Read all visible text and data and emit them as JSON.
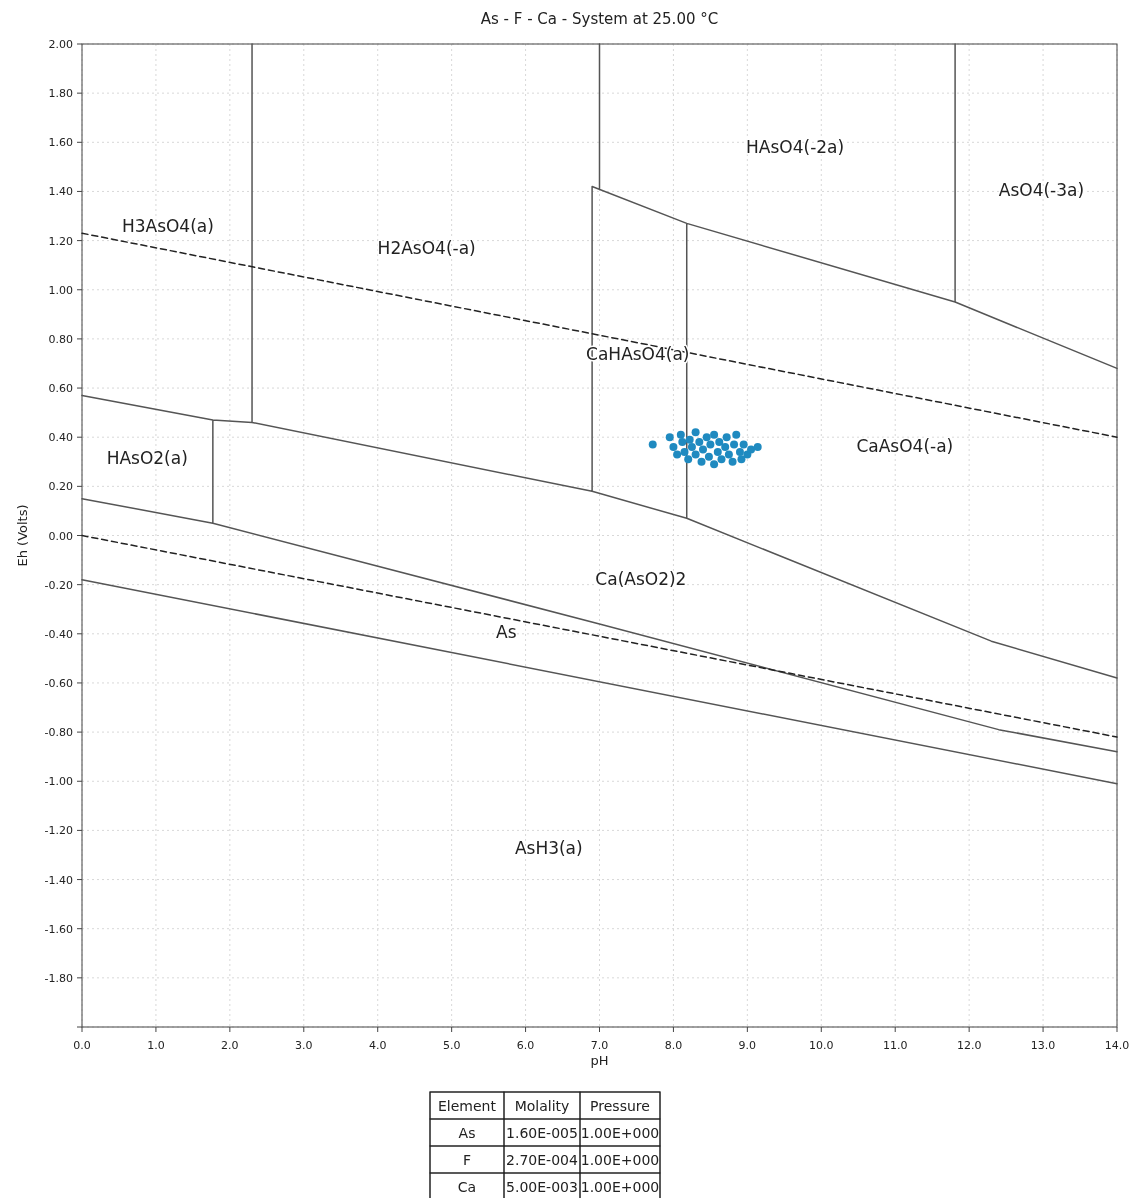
{
  "chart_data": {
    "type": "line",
    "title": "As - F - Ca - System at 25.00 °C",
    "xlabel": "pH",
    "ylabel": "Eh (Volts)",
    "xlim": [
      0,
      14
    ],
    "ylim": [
      -2,
      2
    ],
    "xticks": [
      {
        "value": 0,
        "label": "0.0"
      },
      {
        "value": 1,
        "label": "1.0"
      },
      {
        "value": 2,
        "label": "2.0"
      },
      {
        "value": 3,
        "label": "3.0"
      },
      {
        "value": 4,
        "label": "4.0"
      },
      {
        "value": 5,
        "label": "5.0"
      },
      {
        "value": 6,
        "label": "6.0"
      },
      {
        "value": 7,
        "label": "7.0"
      },
      {
        "value": 8,
        "label": "8.0"
      },
      {
        "value": 9,
        "label": "9.0"
      },
      {
        "value": 10,
        "label": "10.0"
      },
      {
        "value": 11,
        "label": "11.0"
      },
      {
        "value": 12,
        "label": "12.0"
      },
      {
        "value": 13,
        "label": "13.0"
      },
      {
        "value": 14,
        "label": "14.0"
      }
    ],
    "yticks": [
      {
        "value": -2,
        "label": null
      },
      {
        "value": -1.8,
        "label": "-1.80"
      },
      {
        "value": -1.6,
        "label": "-1.60"
      },
      {
        "value": -1.4,
        "label": "-1.40"
      },
      {
        "value": -1.2,
        "label": "-1.20"
      },
      {
        "value": -1,
        "label": "-1.00"
      },
      {
        "value": -0.8,
        "label": "-0.80"
      },
      {
        "value": -0.6,
        "label": "-0.60"
      },
      {
        "value": -0.4,
        "label": "-0.40"
      },
      {
        "value": -0.2,
        "label": "-0.20"
      },
      {
        "value": 0,
        "label": "0.00"
      },
      {
        "value": 0.2,
        "label": "0.20"
      },
      {
        "value": 0.4,
        "label": "0.40"
      },
      {
        "value": 0.6,
        "label": "0.60"
      },
      {
        "value": 0.8,
        "label": "0.80"
      },
      {
        "value": 1,
        "label": "1.00"
      },
      {
        "value": 1.2,
        "label": "1.20"
      },
      {
        "value": 1.4,
        "label": "1.40"
      },
      {
        "value": 1.6,
        "label": "1.60"
      },
      {
        "value": 1.8,
        "label": "1.80"
      },
      {
        "value": 2,
        "label": "2.00"
      }
    ],
    "grid": true,
    "series": [
      {
        "color": "#555555",
        "line_style": "solid",
        "x": [
          2.3,
          2.3,
          null,
          7.0,
          7.0,
          null,
          11.81,
          11.81,
          null,
          0,
          1.77,
          2.3,
          6.9,
          8.18,
          12.3,
          14,
          null,
          6.9,
          6.9,
          8.18,
          11.81,
          14,
          null,
          8.18,
          8.18,
          null,
          1.77,
          1.77,
          null,
          0,
          1.77,
          7.0,
          12.4,
          14,
          null,
          0,
          14
        ],
        "values": [
          0.46,
          2.0,
          null,
          1.41,
          2.0,
          null,
          0.95,
          2.0,
          null,
          0.57,
          0.47,
          0.46,
          0.18,
          0.07,
          -0.43,
          -0.58,
          null,
          0.18,
          1.42,
          1.27,
          0.95,
          0.68,
          null,
          0.07,
          1.27,
          null,
          0.05,
          0.47,
          null,
          0.15,
          0.05,
          -0.36,
          -0.79,
          -0.88,
          null,
          -0.18,
          -1.01
        ]
      },
      {
        "color": "#222222",
        "line_style": "dashed",
        "x": [
          0,
          14
        ],
        "values": [
          1.23,
          0.4
        ]
      },
      {
        "color": "#222222",
        "line_style": "dashed",
        "x": [
          0,
          14
        ],
        "values": [
          0,
          -0.82
        ]
      },
      {
        "type": "scatter",
        "color": "#1f8ac0",
        "marker": "circle",
        "x": [
          7.72,
          7.95,
          8.0,
          8.05,
          8.1,
          8.12,
          8.15,
          8.2,
          8.22,
          8.25,
          8.3,
          8.3,
          8.35,
          8.38,
          8.4,
          8.45,
          8.48,
          8.5,
          8.55,
          8.55,
          8.6,
          8.62,
          8.65,
          8.7,
          8.72,
          8.75,
          8.8,
          8.82,
          8.85,
          8.9,
          8.92,
          8.95,
          9.0,
          9.05,
          9.14
        ],
        "values": [
          0.37,
          0.4,
          0.36,
          0.33,
          0.41,
          0.38,
          0.34,
          0.31,
          0.39,
          0.36,
          0.42,
          0.33,
          0.38,
          0.3,
          0.35,
          0.4,
          0.32,
          0.37,
          0.29,
          0.41,
          0.34,
          0.38,
          0.31,
          0.36,
          0.4,
          0.33,
          0.3,
          0.37,
          0.41,
          0.34,
          0.31,
          0.37,
          0.33,
          0.35,
          0.36
        ]
      }
    ],
    "annotations": [
      "H3AsO4(a)",
      "H2AsO4(-a)",
      "HAsO4(-2a)",
      "AsO4(-3a)",
      "CaHAsO4(a)",
      "CaAsO4(-a)",
      "HAsO2(a)",
      "Ca(AsO2)2",
      "As",
      "AsH3(a)",
      "Element",
      "Molality",
      "Pressure",
      "As",
      "1.60E-005",
      "1.00E+000",
      "F",
      "2.70E-004",
      "1.00E+000",
      "Ca",
      "5.00E-003",
      "1.00E+000"
    ]
  }
}
